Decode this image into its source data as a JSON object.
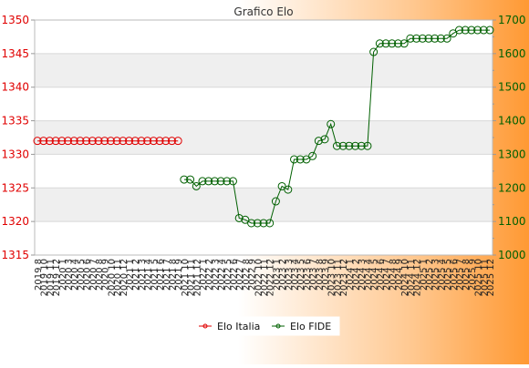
{
  "chart_data": {
    "type": "line",
    "title": "Grafico Elo",
    "x": [
      "2019 8",
      "2019 10",
      "2019 11",
      "2019 12",
      "2020 1",
      "2020 3",
      "2020 4",
      "2020 5",
      "2020 6",
      "2020 7",
      "2020 8",
      "2020 9",
      "2020 10",
      "2020 11",
      "2020 12",
      "2021 1",
      "2021 2",
      "2021 3",
      "2021 4",
      "2021 5",
      "2021 6",
      "2021 7",
      "2021 8",
      "2021 9",
      "2021 10",
      "2021 11",
      "2021 12",
      "2022 1",
      "2022 2",
      "2022 3",
      "2022 4",
      "2022 5",
      "2022 6",
      "2022 7",
      "2022 8",
      "2022 9",
      "2022 10",
      "2022 11",
      "2022 12",
      "2023 1",
      "2023 2",
      "2023 3",
      "2023 4",
      "2023 5",
      "2023 6",
      "2023 7",
      "2023 8",
      "2023 9",
      "2023 10",
      "2023 11",
      "2023 12",
      "2024 1",
      "2024 2",
      "2024 3",
      "2024 4",
      "2024 5",
      "2024 6",
      "2024 7",
      "2024 8",
      "2024 9",
      "2024 10",
      "2024 11",
      "2024 12",
      "2025 1",
      "2025 2",
      "2025 3",
      "2025 4",
      "2025 5",
      "2025 6",
      "2025 7",
      "2025 8",
      "2025 9",
      "2025 10",
      "2025 11",
      "2025 12"
    ],
    "y_left": {
      "min": 1315,
      "max": 1350,
      "ticks": [
        1315,
        1320,
        1325,
        1330,
        1335,
        1340,
        1345,
        1350
      ],
      "color": "#e00000"
    },
    "y_right": {
      "min": 1000,
      "max": 1700,
      "ticks": [
        1000,
        1100,
        1200,
        1300,
        1400,
        1500,
        1600,
        1700
      ],
      "color": "#006000"
    },
    "series": [
      {
        "name": "Elo Italia",
        "axis": "left",
        "color": "#e00000",
        "values": [
          1332,
          1332,
          1332,
          1332,
          1332,
          1332,
          1332,
          1332,
          1332,
          1332,
          1332,
          1332,
          1332,
          1332,
          1332,
          1332,
          1332,
          1332,
          1332,
          1332,
          1332,
          1332,
          1332,
          1332,
          1332,
          1332,
          1332,
          1332,
          1332,
          1332,
          1332,
          1332,
          1332,
          1332,
          1332,
          1332,
          1332,
          1332,
          1332,
          1332,
          1332,
          1332,
          1332,
          1332,
          1332,
          1332,
          1332,
          1332,
          1332,
          1332,
          1332,
          1332,
          1332,
          1332,
          1332,
          1332,
          1332,
          1332,
          1332,
          1332,
          1332,
          1332,
          1332,
          1332,
          1332,
          1332,
          1332,
          1332,
          1332,
          1332,
          1332,
          1332,
          1332,
          1332,
          1332
        ],
        "range": [
          0,
          23
        ]
      },
      {
        "name": "Elo FIDE",
        "axis": "right",
        "color": "#006000",
        "values": [
          null,
          null,
          null,
          null,
          null,
          null,
          null,
          null,
          null,
          null,
          null,
          null,
          null,
          null,
          null,
          null,
          null,
          null,
          null,
          null,
          null,
          null,
          null,
          null,
          1225,
          1225,
          1205,
          1220,
          1220,
          1220,
          1220,
          1220,
          1220,
          1110,
          1105,
          1095,
          1095,
          1095,
          1095,
          1160,
          1205,
          1195,
          1285,
          1285,
          1285,
          1295,
          1340,
          1345,
          1390,
          1325,
          1325,
          1325,
          1325,
          1325,
          1325,
          1605,
          1630,
          1630,
          1630,
          1630,
          1630,
          1645,
          1645,
          1645,
          1645,
          1645,
          1645,
          1645,
          1660,
          1670,
          1670,
          1670,
          1670,
          1670,
          1670
        ]
      }
    ],
    "legend": {
      "position": "bottom",
      "entries": [
        "Elo Italia",
        "Elo FIDE"
      ]
    },
    "grid": true,
    "colors": {
      "bg_left": "#ffffff",
      "bg_right": "#ff9933",
      "plot_band": "#efefef"
    }
  }
}
